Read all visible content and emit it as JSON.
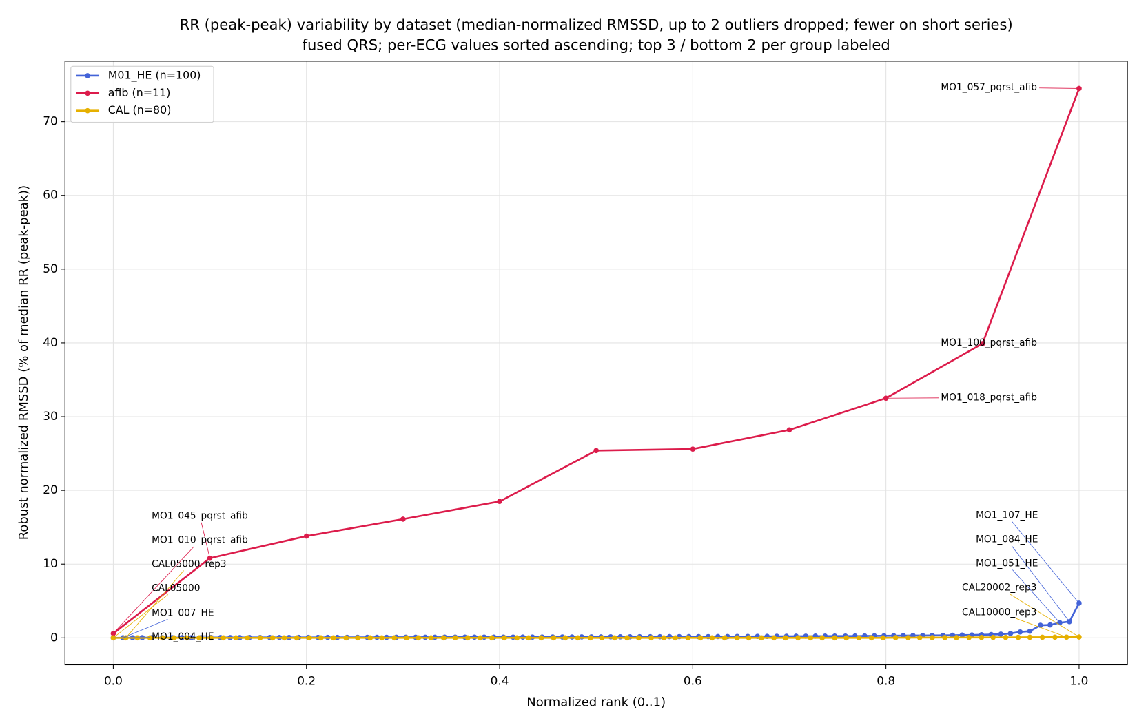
{
  "chart_data": {
    "type": "line",
    "title": "RR (peak-peak) variability by dataset (median-normalized RMSSD, up to 2 outliers dropped; fewer on short series)",
    "subtitle": "fused QRS; per-ECG values sorted ascending; top 3 / bottom 2 per group labeled",
    "x_label": "Normalized rank (0..1)",
    "y_label": "Robust normalized RMSSD (% of median RR (peak-peak))",
    "xlim": [
      -0.05,
      1.05
    ],
    "ylim": [
      -3.65,
      78.2
    ],
    "xticks": [
      {
        "value": 0,
        "label": "0.0"
      },
      {
        "value": 0.2,
        "label": "0.2"
      },
      {
        "value": 0.4,
        "label": "0.4"
      },
      {
        "value": 0.6,
        "label": "0.6"
      },
      {
        "value": 0.8,
        "label": "0.8"
      },
      {
        "value": 1,
        "label": "1.0"
      }
    ],
    "yticks": [
      0,
      10,
      20,
      30,
      40,
      50,
      60,
      70
    ],
    "grid": true,
    "legend": "upper left",
    "series": [
      {
        "name": "M01_HE (n=100)",
        "color": "#4363d8",
        "x": [
          0,
          0.01,
          0.02,
          0.03,
          0.04,
          0.051,
          0.061,
          0.071,
          0.081,
          0.091,
          0.101,
          0.111,
          0.121,
          0.131,
          0.141,
          0.152,
          0.162,
          0.172,
          0.182,
          0.192,
          0.202,
          0.212,
          0.222,
          0.232,
          0.242,
          0.253,
          0.263,
          0.273,
          0.283,
          0.293,
          0.303,
          0.313,
          0.323,
          0.333,
          0.343,
          0.354,
          0.364,
          0.374,
          0.384,
          0.394,
          0.404,
          0.414,
          0.424,
          0.434,
          0.444,
          0.455,
          0.465,
          0.475,
          0.485,
          0.495,
          0.505,
          0.515,
          0.525,
          0.535,
          0.545,
          0.556,
          0.566,
          0.576,
          0.586,
          0.596,
          0.606,
          0.616,
          0.626,
          0.636,
          0.646,
          0.657,
          0.667,
          0.677,
          0.687,
          0.697,
          0.707,
          0.717,
          0.727,
          0.737,
          0.747,
          0.758,
          0.768,
          0.778,
          0.788,
          0.798,
          0.808,
          0.818,
          0.828,
          0.838,
          0.848,
          0.859,
          0.869,
          0.879,
          0.889,
          0.899,
          0.909,
          0.919,
          0.929,
          0.939,
          0.949,
          0.96,
          0.97,
          0.98,
          0.99,
          1
        ],
        "values": [
          0.0,
          0.01,
          0.01,
          0.02,
          0.02,
          0.02,
          0.03,
          0.03,
          0.03,
          0.03,
          0.04,
          0.04,
          0.04,
          0.04,
          0.05,
          0.05,
          0.05,
          0.05,
          0.05,
          0.06,
          0.06,
          0.06,
          0.06,
          0.06,
          0.07,
          0.07,
          0.07,
          0.07,
          0.07,
          0.08,
          0.08,
          0.08,
          0.08,
          0.08,
          0.09,
          0.09,
          0.09,
          0.09,
          0.1,
          0.1,
          0.1,
          0.1,
          0.11,
          0.11,
          0.11,
          0.12,
          0.12,
          0.12,
          0.13,
          0.13,
          0.13,
          0.14,
          0.14,
          0.14,
          0.15,
          0.15,
          0.15,
          0.16,
          0.16,
          0.17,
          0.17,
          0.17,
          0.18,
          0.18,
          0.19,
          0.19,
          0.2,
          0.2,
          0.21,
          0.21,
          0.22,
          0.22,
          0.23,
          0.23,
          0.24,
          0.24,
          0.25,
          0.26,
          0.27,
          0.28,
          0.29,
          0.3,
          0.31,
          0.32,
          0.33,
          0.34,
          0.35,
          0.37,
          0.39,
          0.42,
          0.45,
          0.5,
          0.6,
          0.8,
          0.9,
          1.7,
          1.75,
          2.05,
          2.2,
          4.7
        ]
      },
      {
        "name": "afib (n=11)",
        "color": "#dc1c4b",
        "x": [
          0,
          0.1,
          0.2,
          0.3,
          0.4,
          0.5,
          0.6,
          0.7,
          0.8,
          0.9,
          1
        ],
        "values": [
          0.6,
          10.8,
          13.8,
          16.1,
          18.5,
          25.4,
          25.6,
          28.2,
          32.5,
          39.9,
          74.5
        ]
      },
      {
        "name": "CAL (n=80)",
        "color": "#e6b000",
        "x": [
          0,
          0.013,
          0.025,
          0.038,
          0.051,
          0.063,
          0.076,
          0.089,
          0.101,
          0.114,
          0.127,
          0.139,
          0.152,
          0.165,
          0.177,
          0.19,
          0.203,
          0.215,
          0.228,
          0.241,
          0.253,
          0.266,
          0.278,
          0.291,
          0.304,
          0.316,
          0.329,
          0.342,
          0.354,
          0.367,
          0.38,
          0.392,
          0.405,
          0.418,
          0.43,
          0.443,
          0.456,
          0.468,
          0.481,
          0.494,
          0.506,
          0.519,
          0.532,
          0.544,
          0.557,
          0.57,
          0.582,
          0.595,
          0.608,
          0.62,
          0.633,
          0.646,
          0.658,
          0.671,
          0.684,
          0.696,
          0.709,
          0.722,
          0.734,
          0.747,
          0.759,
          0.772,
          0.785,
          0.797,
          0.81,
          0.823,
          0.835,
          0.848,
          0.861,
          0.873,
          0.886,
          0.899,
          0.911,
          0.924,
          0.937,
          0.949,
          0.962,
          0.975,
          0.987,
          1
        ],
        "values": [
          0,
          0,
          0,
          0,
          0,
          0,
          0,
          0,
          0,
          0,
          0,
          0,
          0,
          0,
          0,
          0,
          0,
          0,
          0,
          0,
          0,
          0,
          0,
          0,
          0,
          0,
          0,
          0,
          0,
          0,
          0,
          0,
          0,
          0,
          0,
          0,
          0,
          0,
          0,
          0,
          0,
          0,
          0,
          0,
          0,
          0,
          0,
          0,
          0,
          0,
          0,
          0,
          0,
          0,
          0,
          0,
          0,
          0,
          0,
          0,
          0,
          0,
          0,
          0,
          0.02,
          0.02,
          0.03,
          0.03,
          0.04,
          0.04,
          0.05,
          0.05,
          0.06,
          0.06,
          0.07,
          0.08,
          0.08,
          0.09,
          0.1,
          0.12
        ]
      }
    ],
    "annotations": [
      "MO1_057_pqrst_afib",
      "MO1_100_pqrst_afib",
      "MO1_018_pqrst_afib",
      "MO1_045_pqrst_afib",
      "MO1_010_pqrst_afib",
      "CAL05000_rep3",
      "CAL05000",
      "MO1_007_HE",
      "MO1_004_HE",
      "MO1_107_HE",
      "MO1_084_HE",
      "MO1_051_HE",
      "CAL20002_rep3",
      "CAL10000_rep3"
    ]
  }
}
